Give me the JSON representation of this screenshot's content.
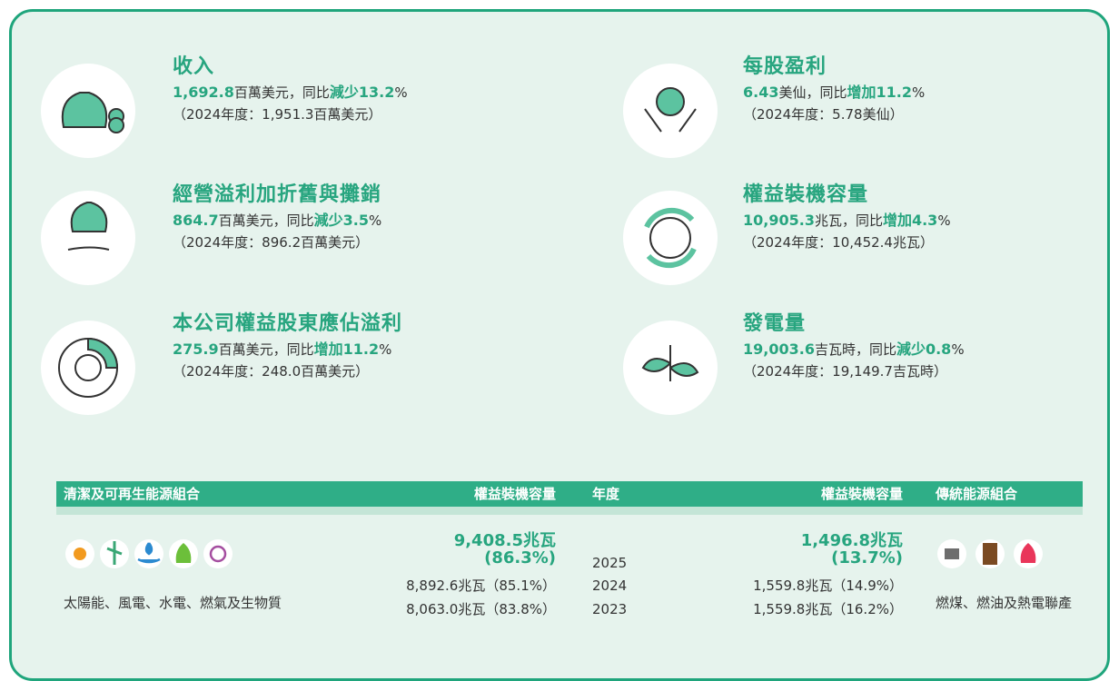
{
  "kpis": [
    {
      "title": "收入",
      "value": "1,692.8",
      "unit": "百萬美元，同比",
      "change": "減少13.2",
      "percent": "%",
      "prior": "（2024年度：1,951.3百萬美元）"
    },
    {
      "title": "每股盈利",
      "value": "6.43",
      "unit": "美仙，同比",
      "change": "增加11.2",
      "percent": "%",
      "prior": "（2024年度：5.78美仙）"
    },
    {
      "title": "經營溢利加折舊與攤銷",
      "value": "864.7",
      "unit": "百萬美元，同比",
      "change": "減少3.5",
      "percent": "%",
      "prior": "（2024年度：896.2百萬美元）"
    },
    {
      "title": "權益裝機容量",
      "value": "10,905.3",
      "unit": "兆瓦，同比",
      "change": "增加4.3",
      "percent": "%",
      "prior": "（2024年度：10,452.4兆瓦）"
    },
    {
      "title": "本公司權益股東應佔溢利",
      "value": "275.9",
      "unit": "百萬美元，同比",
      "change": "增加11.2",
      "percent": "%",
      "prior": "（2024年度：248.0百萬美元）"
    },
    {
      "title": "發電量",
      "value": "19,003.6",
      "unit": "吉瓦時，同比",
      "change": "減少0.8",
      "percent": "%",
      "prior": "（2024年度：19,149.7吉瓦時）"
    }
  ],
  "table": {
    "headers": [
      "清潔及可再生能源組合",
      "權益裝機容量",
      "年度",
      "權益裝機容量",
      "傳統能源組合"
    ],
    "years": [
      "2025",
      "2024",
      "2023"
    ],
    "clean": {
      "latest": [
        "9,408.5兆瓦",
        "(86.3%)"
      ],
      "rows": [
        "8,892.6兆瓦（85.1%）",
        "8,063.0兆瓦（83.8%）"
      ],
      "caption": "太陽能、風電、水電、燃氣及生物質"
    },
    "traditional": {
      "latest": [
        "1,496.8兆瓦",
        "(13.7%)"
      ],
      "rows": [
        "1,559.8兆瓦（14.9%）",
        "1,559.8兆瓦（16.2%）"
      ],
      "caption": "燃煤、燃油及熱電聯產"
    }
  }
}
